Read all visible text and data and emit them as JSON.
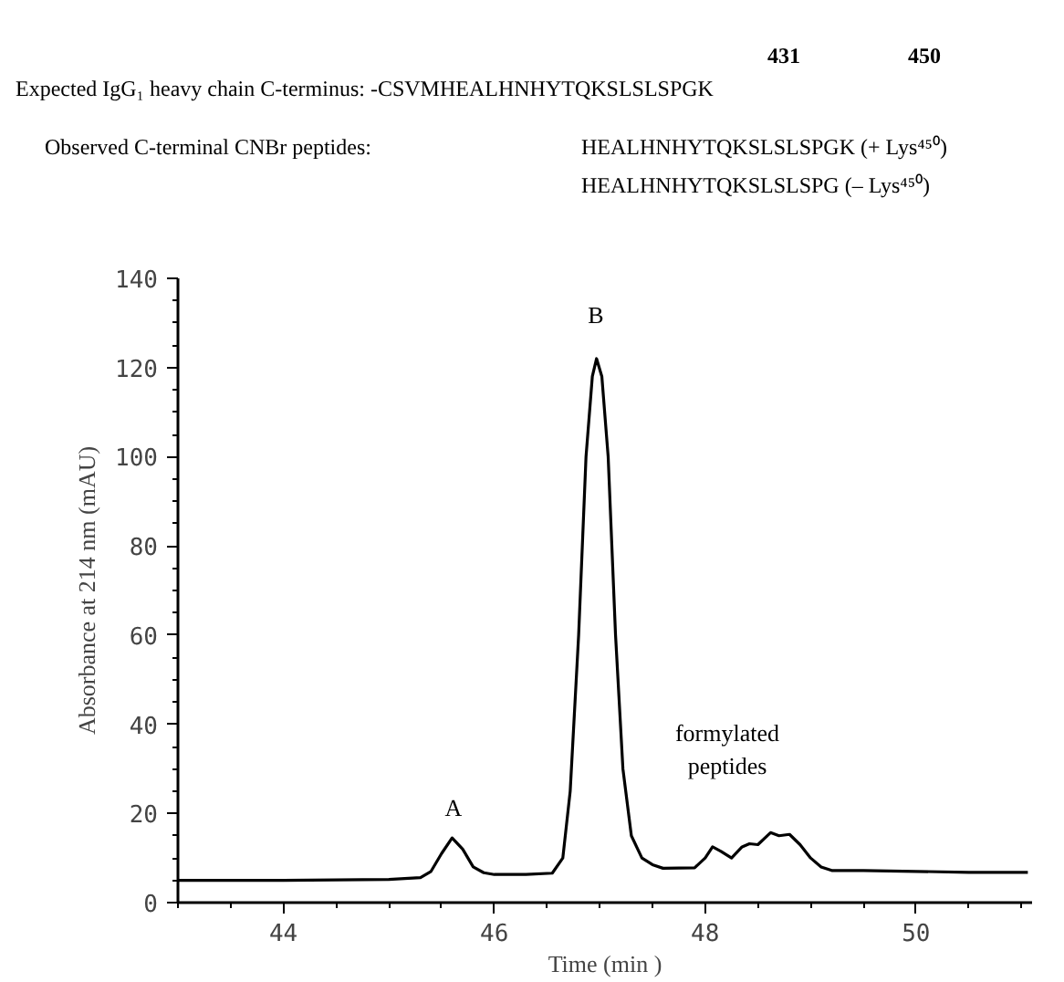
{
  "chart_data": {
    "type": "line",
    "xlabel": "Time (min )",
    "ylabel": "Absorbance at 214 nm (mAU)",
    "annotations": [
      "431",
      "450",
      "Expected IgG₁ heavy chain C-terminus: -CSVMHEALHNHYTQKSLSLSPGK",
      "Observed C-terminal CNBr peptides:",
      "HEALHNHYTQKSLSLSPGK (+ Lys⁴⁵⁰)",
      "HEALHNHYTQKSLSLSPG   (– Lys⁴⁵⁰)",
      "A",
      "B",
      "formylated\npeptides"
    ],
    "series": [
      {
        "color": "#000000",
        "x": [
          43.0,
          44.0,
          45.0,
          45.3,
          45.4,
          45.5,
          45.6,
          45.7,
          45.8,
          45.9,
          46.0,
          46.3,
          46.55,
          46.65,
          46.72,
          46.8,
          46.87,
          46.93,
          46.97,
          47.02,
          47.08,
          47.15,
          47.22,
          47.3,
          47.4,
          47.5,
          47.6,
          47.9,
          48.0,
          48.07,
          48.15,
          48.25,
          48.35,
          48.42,
          48.5,
          48.62,
          48.7,
          48.8,
          48.9,
          49.0,
          49.1,
          49.2,
          49.5,
          50.0,
          50.5,
          51.06
        ],
        "values": [
          5,
          5,
          5.2,
          5.6,
          7,
          11,
          14.5,
          12,
          8,
          6.7,
          6.3,
          6.3,
          6.6,
          10,
          25,
          60,
          100,
          118,
          122,
          118,
          100,
          60,
          30,
          15,
          10,
          8.5,
          7.7,
          7.8,
          10,
          12.5,
          11.5,
          10,
          12.5,
          13.2,
          13,
          15.7,
          15,
          15.3,
          13,
          10,
          8,
          7.2,
          7.2,
          7.0,
          6.8,
          6.8
        ]
      }
    ],
    "xlim": [
      43.0,
      51.1
    ],
    "ylim": [
      0,
      140
    ],
    "xticks": [
      44,
      46,
      48,
      50
    ],
    "yticks": [
      0,
      20,
      40,
      60,
      80,
      100,
      120,
      140
    ]
  }
}
